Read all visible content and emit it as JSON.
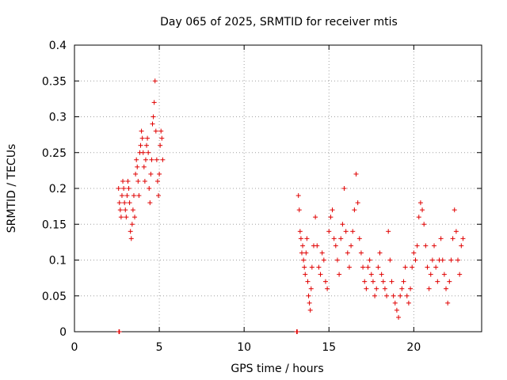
{
  "chart_data": {
    "type": "scatter",
    "title": "Day 065 of 2025, SRMTID for receiver mtis",
    "xlabel": "GPS time / hours",
    "ylabel": "SRMTID / TECUs",
    "xlim": [
      0,
      24
    ],
    "ylim": [
      0,
      0.4
    ],
    "xticks": [
      0,
      5,
      10,
      15,
      20
    ],
    "yticks": [
      0,
      0.05,
      0.1,
      0.15,
      0.2,
      0.25,
      0.3,
      0.35,
      0.4
    ],
    "xtick_labels": [
      "0",
      "5",
      "10",
      "15",
      "20"
    ],
    "ytick_labels": [
      "0",
      "0.05",
      "0.1",
      "0.15",
      "0.2",
      "0.25",
      "0.3",
      "0.35",
      "0.4"
    ],
    "grid": true,
    "marker": "plus",
    "color": "#e00000",
    "series": [
      {
        "name": "SRMTID",
        "points": [
          [
            2.62,
            0
          ],
          [
            2.65,
            0
          ],
          [
            13.1,
            0
          ],
          [
            13.13,
            0
          ],
          [
            2.6,
            0.2
          ],
          [
            2.65,
            0.18
          ],
          [
            2.7,
            0.17
          ],
          [
            2.75,
            0.16
          ],
          [
            2.8,
            0.19
          ],
          [
            2.85,
            0.21
          ],
          [
            2.9,
            0.2
          ],
          [
            2.95,
            0.18
          ],
          [
            3.0,
            0.17
          ],
          [
            3.05,
            0.16
          ],
          [
            3.1,
            0.19
          ],
          [
            3.15,
            0.21
          ],
          [
            3.2,
            0.2
          ],
          [
            3.25,
            0.18
          ],
          [
            3.3,
            0.14
          ],
          [
            3.35,
            0.13
          ],
          [
            3.4,
            0.15
          ],
          [
            3.45,
            0.17
          ],
          [
            3.5,
            0.19
          ],
          [
            3.55,
            0.16
          ],
          [
            3.6,
            0.22
          ],
          [
            3.65,
            0.24
          ],
          [
            3.7,
            0.23
          ],
          [
            3.75,
            0.21
          ],
          [
            3.8,
            0.19
          ],
          [
            3.85,
            0.25
          ],
          [
            3.9,
            0.26
          ],
          [
            3.95,
            0.28
          ],
          [
            4.0,
            0.27
          ],
          [
            4.05,
            0.25
          ],
          [
            4.1,
            0.23
          ],
          [
            4.15,
            0.21
          ],
          [
            4.2,
            0.24
          ],
          [
            4.25,
            0.26
          ],
          [
            4.3,
            0.27
          ],
          [
            4.35,
            0.25
          ],
          [
            4.4,
            0.2
          ],
          [
            4.45,
            0.18
          ],
          [
            4.5,
            0.22
          ],
          [
            4.55,
            0.24
          ],
          [
            4.6,
            0.29
          ],
          [
            4.65,
            0.3
          ],
          [
            4.7,
            0.32
          ],
          [
            4.75,
            0.35
          ],
          [
            4.8,
            0.28
          ],
          [
            4.85,
            0.24
          ],
          [
            4.9,
            0.21
          ],
          [
            4.95,
            0.19
          ],
          [
            5.0,
            0.22
          ],
          [
            5.05,
            0.26
          ],
          [
            5.1,
            0.28
          ],
          [
            5.15,
            0.27
          ],
          [
            5.2,
            0.24
          ],
          [
            13.2,
            0.19
          ],
          [
            13.25,
            0.17
          ],
          [
            13.3,
            0.14
          ],
          [
            13.35,
            0.13
          ],
          [
            13.4,
            0.11
          ],
          [
            13.45,
            0.12
          ],
          [
            13.5,
            0.1
          ],
          [
            13.55,
            0.09
          ],
          [
            13.6,
            0.08
          ],
          [
            13.65,
            0.11
          ],
          [
            13.7,
            0.13
          ],
          [
            13.75,
            0.07
          ],
          [
            13.8,
            0.05
          ],
          [
            13.85,
            0.04
          ],
          [
            13.9,
            0.03
          ],
          [
            13.95,
            0.06
          ],
          [
            14.0,
            0.09
          ],
          [
            14.1,
            0.12
          ],
          [
            14.2,
            0.16
          ],
          [
            14.3,
            0.12
          ],
          [
            14.4,
            0.09
          ],
          [
            14.5,
            0.08
          ],
          [
            14.6,
            0.11
          ],
          [
            14.7,
            0.1
          ],
          [
            14.8,
            0.07
          ],
          [
            14.9,
            0.06
          ],
          [
            15.0,
            0.14
          ],
          [
            15.1,
            0.16
          ],
          [
            15.2,
            0.17
          ],
          [
            15.3,
            0.13
          ],
          [
            15.4,
            0.12
          ],
          [
            15.5,
            0.1
          ],
          [
            15.6,
            0.08
          ],
          [
            15.7,
            0.13
          ],
          [
            15.8,
            0.15
          ],
          [
            15.9,
            0.2
          ],
          [
            16.0,
            0.14
          ],
          [
            16.1,
            0.11
          ],
          [
            16.2,
            0.09
          ],
          [
            16.3,
            0.12
          ],
          [
            16.4,
            0.14
          ],
          [
            16.5,
            0.17
          ],
          [
            16.6,
            0.22
          ],
          [
            16.7,
            0.18
          ],
          [
            16.8,
            0.13
          ],
          [
            16.9,
            0.11
          ],
          [
            17.0,
            0.09
          ],
          [
            17.1,
            0.07
          ],
          [
            17.2,
            0.06
          ],
          [
            17.3,
            0.09
          ],
          [
            17.4,
            0.1
          ],
          [
            17.5,
            0.08
          ],
          [
            17.6,
            0.07
          ],
          [
            17.7,
            0.05
          ],
          [
            17.8,
            0.06
          ],
          [
            17.9,
            0.09
          ],
          [
            18.0,
            0.11
          ],
          [
            18.1,
            0.08
          ],
          [
            18.2,
            0.07
          ],
          [
            18.3,
            0.06
          ],
          [
            18.4,
            0.05
          ],
          [
            18.5,
            0.14
          ],
          [
            18.6,
            0.1
          ],
          [
            18.7,
            0.07
          ],
          [
            18.8,
            0.05
          ],
          [
            18.9,
            0.04
          ],
          [
            19.0,
            0.03
          ],
          [
            19.1,
            0.02
          ],
          [
            19.2,
            0.05
          ],
          [
            19.3,
            0.06
          ],
          [
            19.4,
            0.07
          ],
          [
            19.5,
            0.09
          ],
          [
            19.6,
            0.05
          ],
          [
            19.7,
            0.04
          ],
          [
            19.8,
            0.06
          ],
          [
            19.9,
            0.09
          ],
          [
            20.0,
            0.11
          ],
          [
            20.1,
            0.1
          ],
          [
            20.2,
            0.12
          ],
          [
            20.3,
            0.16
          ],
          [
            20.4,
            0.18
          ],
          [
            20.5,
            0.17
          ],
          [
            20.6,
            0.15
          ],
          [
            20.7,
            0.12
          ],
          [
            20.8,
            0.09
          ],
          [
            20.9,
            0.06
          ],
          [
            21.0,
            0.08
          ],
          [
            21.1,
            0.1
          ],
          [
            21.2,
            0.12
          ],
          [
            21.3,
            0.09
          ],
          [
            21.4,
            0.07
          ],
          [
            21.5,
            0.1
          ],
          [
            21.6,
            0.13
          ],
          [
            21.7,
            0.1
          ],
          [
            21.8,
            0.08
          ],
          [
            21.9,
            0.06
          ],
          [
            22.0,
            0.04
          ],
          [
            22.1,
            0.07
          ],
          [
            22.2,
            0.1
          ],
          [
            22.3,
            0.13
          ],
          [
            22.4,
            0.17
          ],
          [
            22.5,
            0.14
          ],
          [
            22.6,
            0.1
          ],
          [
            22.7,
            0.08
          ],
          [
            22.8,
            0.12
          ],
          [
            22.9,
            0.13
          ]
        ]
      }
    ]
  }
}
